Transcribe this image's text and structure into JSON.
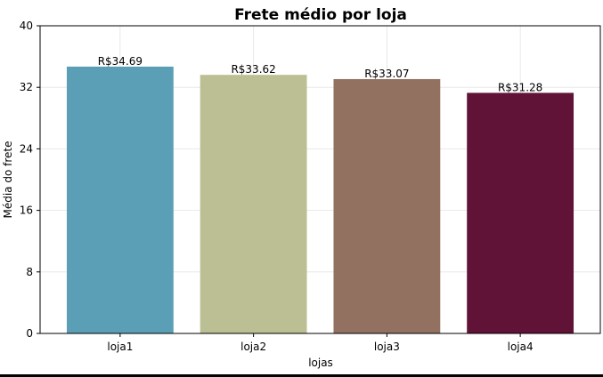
{
  "chart_data": {
    "type": "bar",
    "title": "Frete médio por loja",
    "xlabel": "lojas",
    "ylabel": "Média do frete",
    "categories": [
      "loja1",
      "loja2",
      "loja3",
      "loja4"
    ],
    "values": [
      34.69,
      33.62,
      33.07,
      31.28
    ],
    "data_labels": [
      "R$34.69",
      "R$33.62",
      "R$33.07",
      "R$31.28"
    ],
    "colors": [
      "#5b9fb6",
      "#bcbf94",
      "#927161",
      "#601237"
    ],
    "ylim": [
      0,
      40
    ],
    "yticks": [
      0,
      8,
      16,
      24,
      32,
      40
    ],
    "ytick_labels": [
      "0",
      "8",
      "16",
      "24",
      "32",
      "40"
    ],
    "grid": true,
    "legend": "none"
  }
}
